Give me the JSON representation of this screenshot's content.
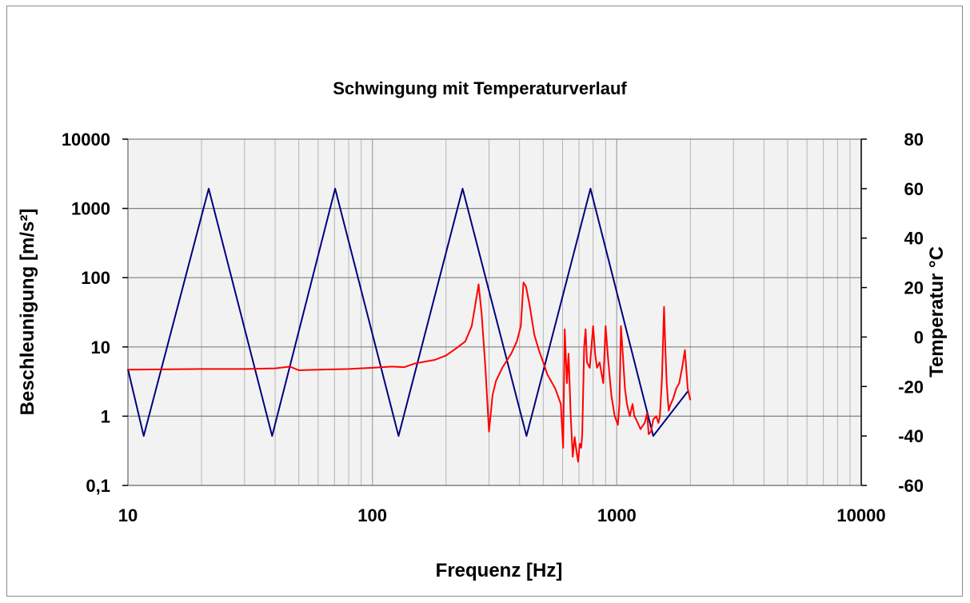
{
  "chart_data": {
    "type": "line",
    "title": "Schwingung mit Temperaturverlauf",
    "xlabel": "Frequenz [Hz]",
    "ylabel": "Beschleunigung [m/s²]",
    "y2label": "Temperatur °C",
    "xscale": "log",
    "yscale": "log",
    "xlim": [
      10,
      10000
    ],
    "ylim": [
      0.1,
      10000
    ],
    "y2lim": [
      -60,
      80
    ],
    "x_tick_labels": [
      "10",
      "100",
      "1000",
      "10000"
    ],
    "y_tick_labels": [
      "0,1",
      "1",
      "10",
      "100",
      "1000",
      "10000"
    ],
    "y2_tick_labels": [
      "-60",
      "-40",
      "-20",
      "0",
      "20",
      "40",
      "60",
      "80"
    ],
    "grid": true,
    "legend": "none",
    "colors": {
      "plot_bg": "#f2f2f2",
      "grid": "#a0a0a0",
      "temperature": "#000080",
      "acceleration": "#ff0000"
    },
    "series": [
      {
        "axis": "y2",
        "x": [
          10,
          11.6,
          21.4,
          38.9,
          70.4,
          128,
          234,
          427,
          780,
          1410,
          1950
        ],
        "values": [
          -13,
          -40,
          60,
          -40,
          60,
          -40,
          60,
          -40,
          60,
          -40,
          -22
        ]
      },
      {
        "axis": "y",
        "x": [
          10,
          20,
          30,
          40,
          46,
          50,
          60,
          80,
          100,
          120,
          135,
          150,
          180,
          200,
          220,
          240,
          255,
          265,
          272,
          280,
          290,
          300,
          310,
          320,
          340,
          370,
          390,
          405,
          415,
          425,
          440,
          460,
          480,
          500,
          520,
          560,
          590,
          603,
          612,
          625,
          635,
          648,
          660,
          672,
          685,
          695,
          705,
          715,
          722,
          735,
          745,
          755,
          775,
          800,
          815,
          830,
          850,
          880,
          900,
          920,
          950,
          980,
          1010,
          1025,
          1040,
          1060,
          1080,
          1100,
          1130,
          1160,
          1180,
          1200,
          1250,
          1300,
          1330,
          1350,
          1380,
          1410,
          1450,
          1480,
          1500,
          1530,
          1560,
          1580,
          1600,
          1630,
          1650,
          1700,
          1750,
          1800,
          1850,
          1900,
          1950,
          2000
        ],
        "values": [
          4.7,
          4.8,
          4.8,
          4.9,
          5.2,
          4.6,
          4.7,
          4.8,
          5.0,
          5.2,
          5.1,
          5.8,
          6.5,
          7.5,
          9.5,
          12,
          20,
          45,
          80,
          30,
          5,
          0.6,
          2.0,
          3.2,
          5.0,
          8.0,
          12,
          20,
          85,
          75,
          40,
          15,
          9.0,
          6.0,
          4.0,
          2.5,
          1.5,
          0.35,
          18,
          3.0,
          8.0,
          1.0,
          0.26,
          0.5,
          0.3,
          0.22,
          0.4,
          0.35,
          0.55,
          10,
          18,
          6.0,
          5.0,
          20,
          8.0,
          5.0,
          6.0,
          3.0,
          20,
          7.0,
          2.0,
          1.0,
          0.75,
          1.5,
          20,
          7.0,
          2.5,
          1.5,
          1.0,
          1.5,
          1.0,
          0.9,
          0.65,
          0.8,
          1.1,
          0.55,
          0.6,
          0.9,
          1.0,
          0.8,
          1.0,
          3.5,
          38,
          9.0,
          3.0,
          1.2,
          1.4,
          1.8,
          2.5,
          3.0,
          5.0,
          9.0,
          2.5,
          1.7
        ]
      }
    ]
  }
}
